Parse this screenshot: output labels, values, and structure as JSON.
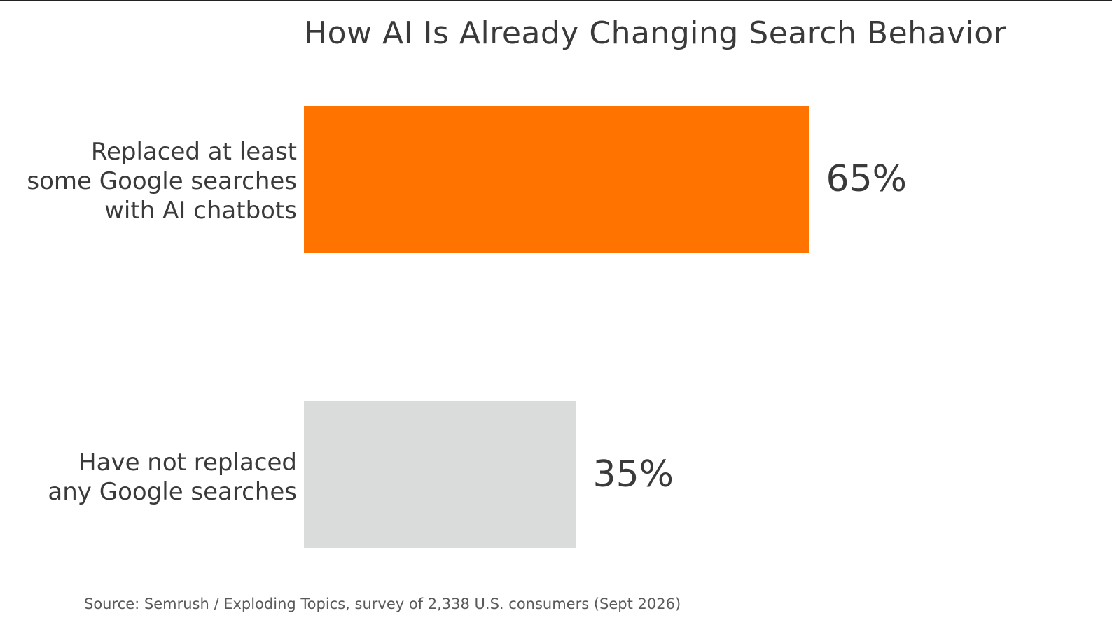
{
  "chart_data": {
    "type": "bar",
    "orientation": "horizontal",
    "title": "How AI Is Already Changing Search Behavior",
    "categories": [
      [
        "Replaced at least",
        "some Google searches",
        "with AI chatbots"
      ],
      [
        "Have not replaced",
        "any Google searches"
      ]
    ],
    "values": [
      65,
      35
    ],
    "data_labels": [
      "65%",
      "35%"
    ],
    "colors": [
      "#ff7300",
      "#dadbdb"
    ],
    "xlim": [
      0,
      100
    ],
    "grid": false,
    "legend": "none"
  },
  "source": "Source: Semrush / Exploding Topics, survey of 2,338 U.S. consumers (Sept 2026)"
}
